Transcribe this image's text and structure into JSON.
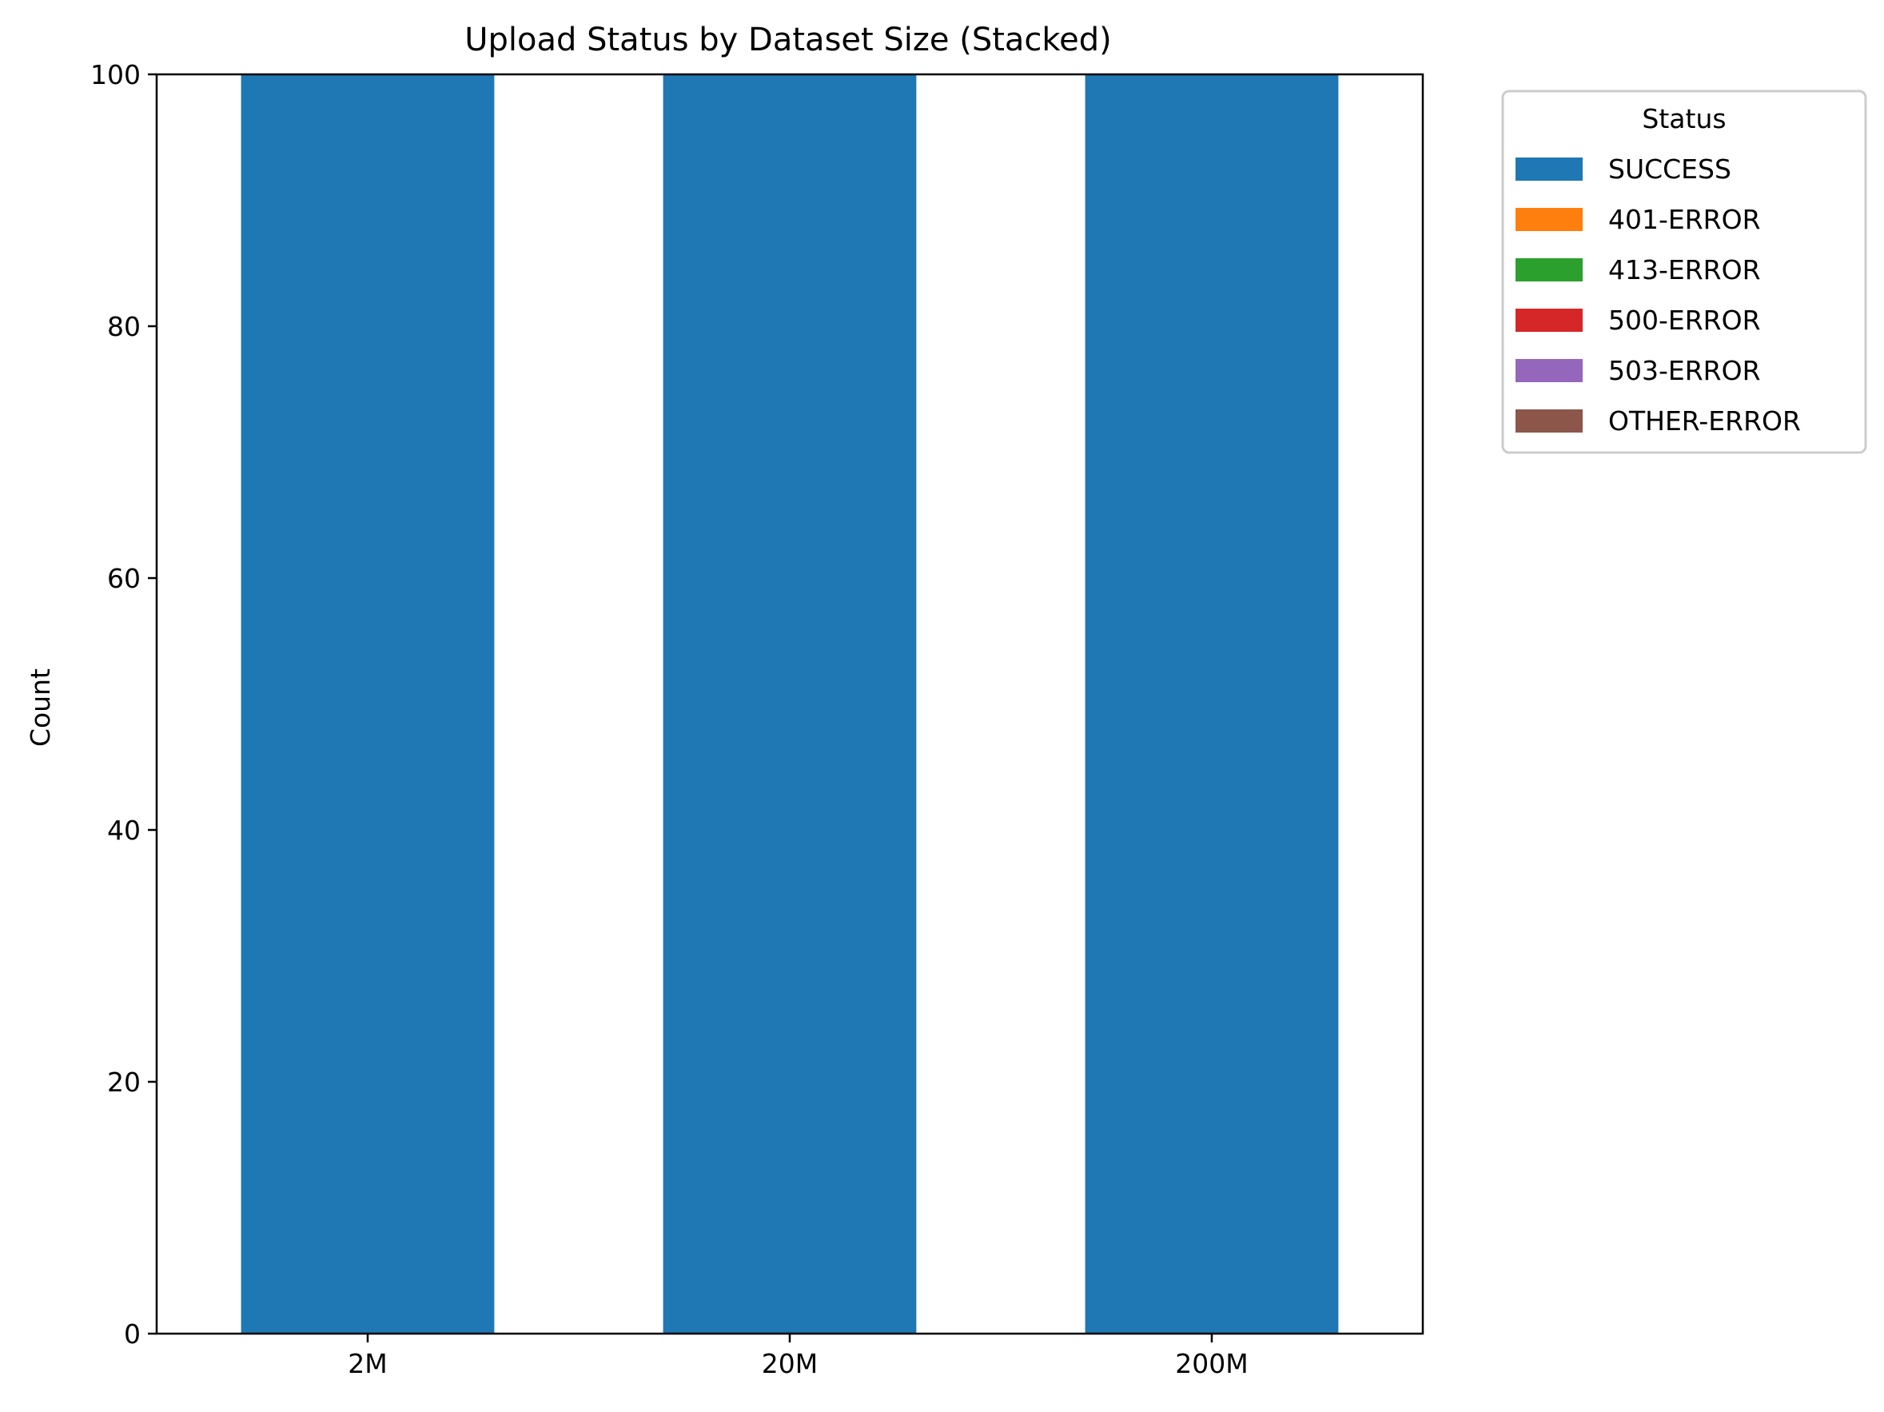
{
  "chart_data": {
    "type": "bar",
    "stacked": true,
    "title": "Upload Status by Dataset Size (Stacked)",
    "xlabel": "",
    "ylabel": "Count",
    "categories": [
      "2M",
      "20M",
      "200M"
    ],
    "ylim": [
      0,
      100
    ],
    "yticks": [
      0,
      20,
      40,
      60,
      80,
      100
    ],
    "grid": false,
    "legend": {
      "title": "Status",
      "placement": "outside upper right"
    },
    "series": [
      {
        "name": "SUCCESS",
        "color": "#1f77b4",
        "values": [
          100,
          100,
          100
        ]
      },
      {
        "name": "401-ERROR",
        "color": "#ff7f0e",
        "values": [
          0,
          0,
          0
        ]
      },
      {
        "name": "413-ERROR",
        "color": "#2ca02c",
        "values": [
          0,
          0,
          0
        ]
      },
      {
        "name": "500-ERROR",
        "color": "#d62728",
        "values": [
          0,
          0,
          0
        ]
      },
      {
        "name": "503-ERROR",
        "color": "#9467bd",
        "values": [
          0,
          0,
          0
        ]
      },
      {
        "name": "OTHER-ERROR",
        "color": "#8c564b",
        "values": [
          0,
          0,
          0
        ]
      }
    ]
  }
}
